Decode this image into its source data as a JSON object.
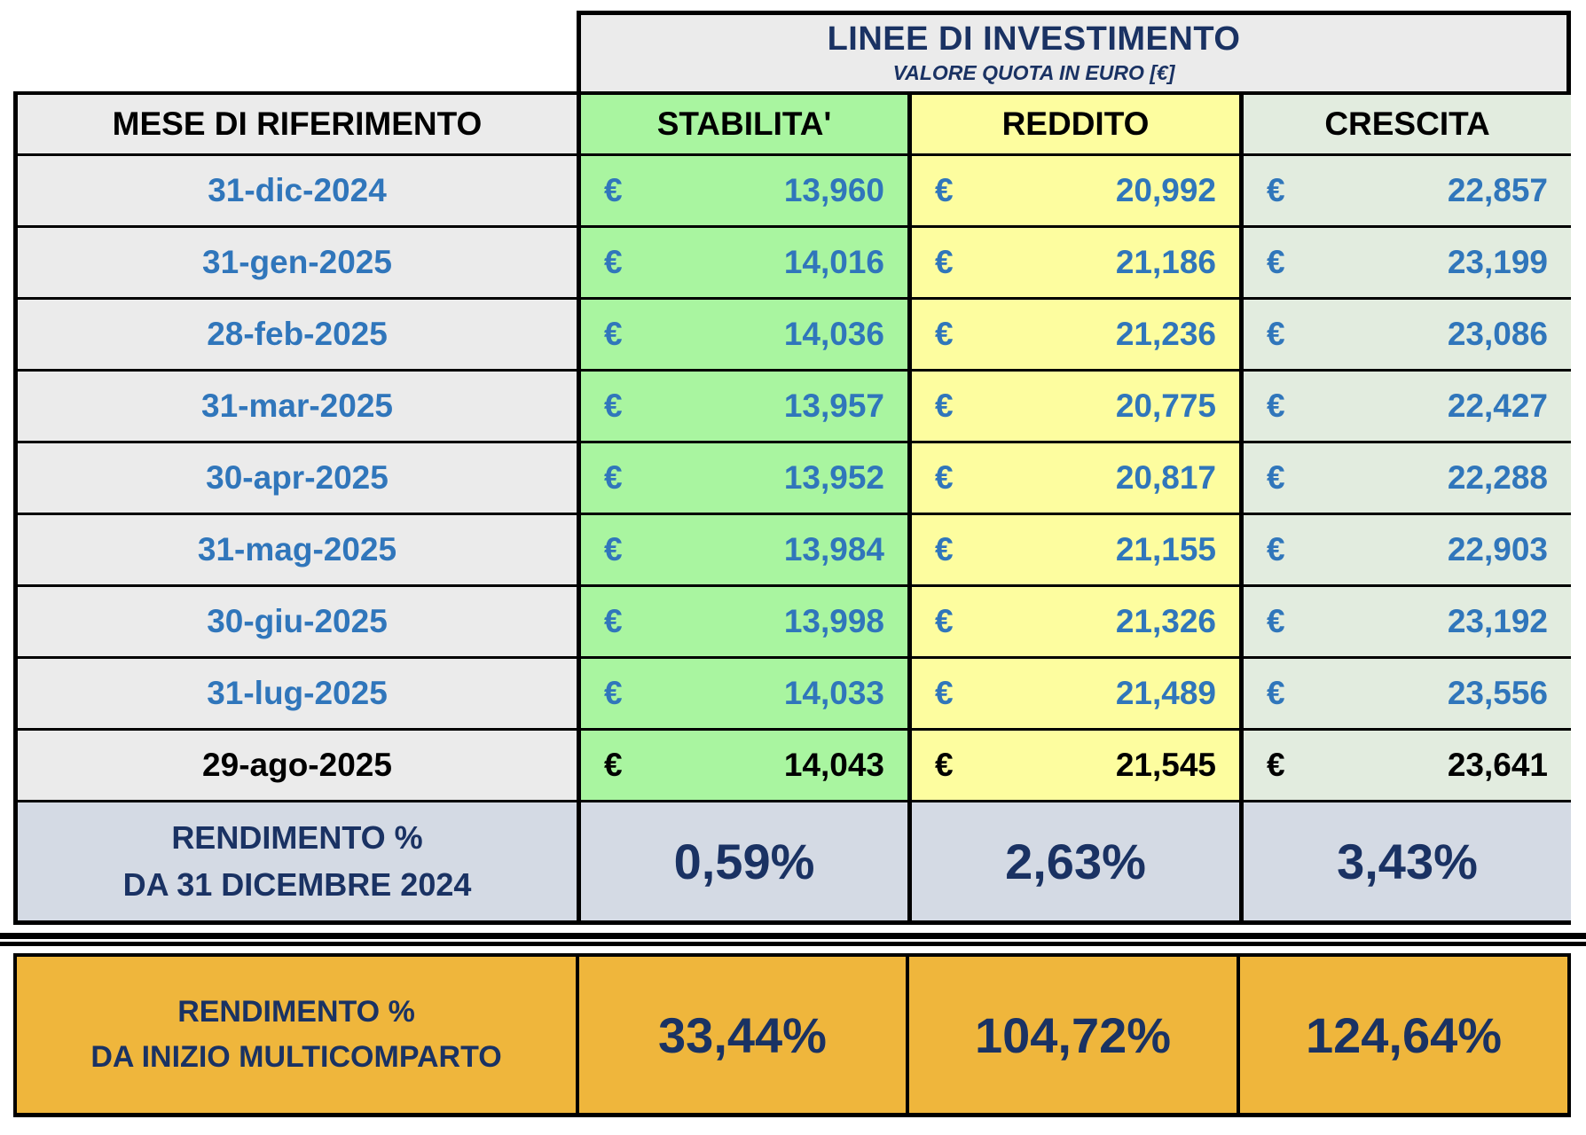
{
  "header": {
    "title": "LINEE DI INVESTIMENTO",
    "subtitle": "VALORE QUOTA IN EURO [€]"
  },
  "columns": {
    "month": "MESE DI RIFERIMENTO",
    "stabilita": "STABILITA'",
    "reddito": "REDDITO",
    "crescita": "CRESCITA"
  },
  "currency": "€",
  "rows": [
    {
      "month": "31-dic-2024",
      "stabilita": "13,960",
      "reddito": "20,992",
      "crescita": "22,857"
    },
    {
      "month": "31-gen-2025",
      "stabilita": "14,016",
      "reddito": "21,186",
      "crescita": "23,199"
    },
    {
      "month": "28-feb-2025",
      "stabilita": "14,036",
      "reddito": "21,236",
      "crescita": "23,086"
    },
    {
      "month": "31-mar-2025",
      "stabilita": "13,957",
      "reddito": "20,775",
      "crescita": "22,427"
    },
    {
      "month": "30-apr-2025",
      "stabilita": "13,952",
      "reddito": "20,817",
      "crescita": "22,288"
    },
    {
      "month": "31-mag-2025",
      "stabilita": "13,984",
      "reddito": "21,155",
      "crescita": "22,903"
    },
    {
      "month": "30-giu-2025",
      "stabilita": "13,998",
      "reddito": "21,326",
      "crescita": "23,192"
    },
    {
      "month": "31-lug-2025",
      "stabilita": "14,033",
      "reddito": "21,489",
      "crescita": "23,556"
    },
    {
      "month": "29-ago-2025",
      "stabilita": "14,043",
      "reddito": "21,545",
      "crescita": "23,641"
    }
  ],
  "ytd_return": {
    "label_line1": "RENDIMENTO %",
    "label_line2": "DA 31 DICEMBRE 2024",
    "stabilita": "0,59%",
    "reddito": "2,63%",
    "crescita": "3,43%"
  },
  "inception_return": {
    "label_line1": "RENDIMENTO %",
    "label_line2": "DA INIZIO MULTICOMPARTO",
    "stabilita": "33,44%",
    "reddito": "104,72%",
    "crescita": "124,64%"
  },
  "colors": {
    "stabilita_bg": "#A9F5A0",
    "reddito_bg": "#FDFD9F",
    "crescita_bg": "#E2ECDF",
    "month_bg": "#EBEBEB",
    "return_row_bg": "#D4DAE4",
    "inception_bg": "#EFB63C",
    "navy_text": "#1A3263",
    "blue_text": "#3076BB"
  }
}
